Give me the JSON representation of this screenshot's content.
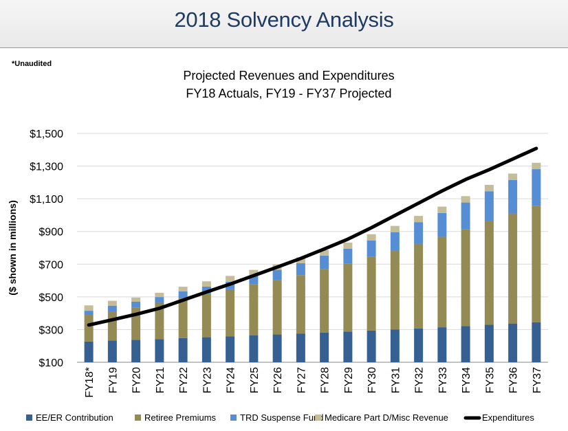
{
  "header": {
    "title": "2018 Solvency Analysis"
  },
  "note": "*Unaudited",
  "chart_data": {
    "type": "bar",
    "stacked": true,
    "title": "Projected Revenues and Expenditures",
    "subtitle": "FY18 Actuals, FY19 - FY37 Projected",
    "ylabel": "($ shown in millions)",
    "xlabel": "",
    "ylim": [
      100,
      1550
    ],
    "yticks": [
      100,
      300,
      500,
      700,
      900,
      1100,
      1300,
      1500
    ],
    "ytick_labels": [
      "$100",
      "$300",
      "$500",
      "$700",
      "$900",
      "$1,100",
      "$1,300",
      "$1,500"
    ],
    "grid": true,
    "legend_position": "bottom",
    "categories": [
      "FY18*",
      "FY19",
      "FY20",
      "FY21",
      "FY22",
      "FY23",
      "FY24",
      "FY25",
      "FY26",
      "FY27",
      "FY28",
      "FY29",
      "FY30",
      "FY31",
      "FY32",
      "FY33",
      "FY34",
      "FY35",
      "FY36",
      "FY37"
    ],
    "series": [
      {
        "name": "EE/ER Contribution",
        "color": "#376092",
        "values": [
          127,
          133,
          137,
          142,
          148,
          153,
          159,
          164,
          170,
          176,
          182,
          188,
          194,
          201,
          207,
          214,
          221,
          229,
          237,
          245
        ]
      },
      {
        "name": "Retiree Premiums",
        "color": "#948a54",
        "values": [
          163,
          178,
          198,
          222,
          242,
          267,
          287,
          312,
          332,
          357,
          387,
          417,
          452,
          482,
          518,
          553,
          593,
          633,
          673,
          713
        ]
      },
      {
        "name": "TRD Suspense Fund",
        "color": "#558ed5",
        "values": [
          25,
          35,
          35,
          35,
          43,
          43,
          47,
          54,
          63,
          73,
          83,
          89,
          99,
          113,
          132,
          146,
          163,
          184,
          205,
          223
        ]
      },
      {
        "name": "Medicare Part D/Misc Revenue",
        "color": "#c4bd97",
        "values": [
          33,
          30,
          26,
          26,
          29,
          32,
          35,
          35,
          33,
          35,
          35,
          38,
          38,
          38,
          38,
          39,
          39,
          39,
          39,
          39
        ]
      }
    ],
    "line_series": {
      "name": "Expenditures",
      "color": "#000000",
      "values": [
        328,
        360,
        393,
        430,
        480,
        530,
        578,
        630,
        682,
        735,
        793,
        853,
        923,
        998,
        1073,
        1148,
        1218,
        1278,
        1343,
        1408
      ]
    }
  }
}
